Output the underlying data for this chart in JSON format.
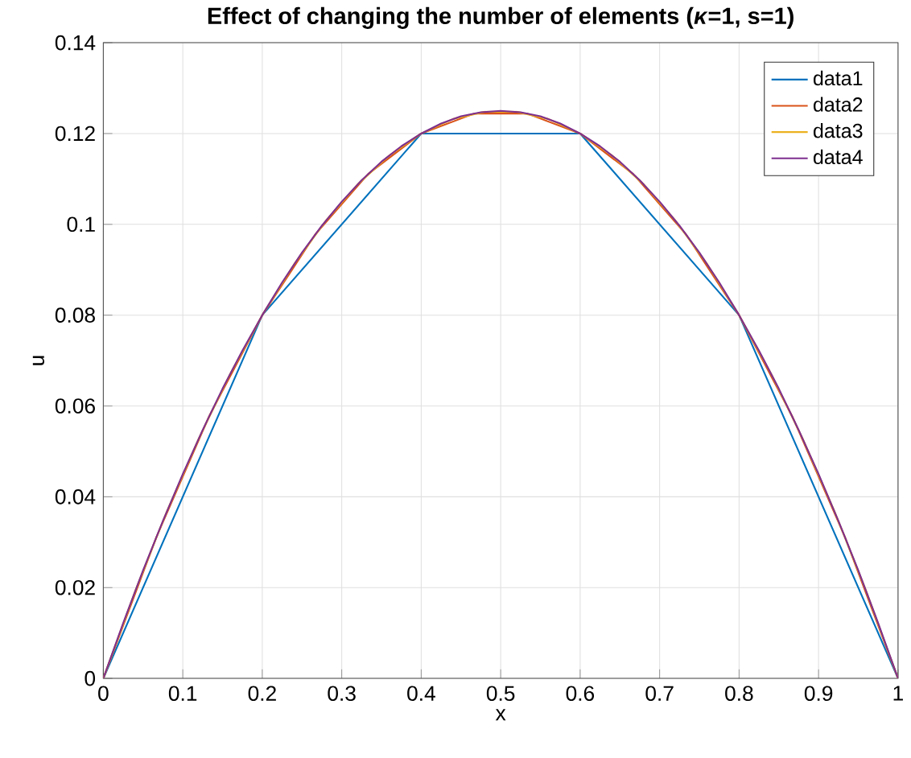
{
  "chart_data": {
    "type": "line",
    "title": "Effect of changing the number of elements (*κ*=1, s=1)",
    "xlabel": "x",
    "ylabel": "u",
    "xlim": [
      0,
      1
    ],
    "ylim": [
      0,
      0.14
    ],
    "xticks": [
      0,
      0.1,
      0.2,
      0.3,
      0.4,
      0.5,
      0.6,
      0.7,
      0.8,
      0.9,
      1
    ],
    "yticks": [
      0,
      0.02,
      0.04,
      0.06,
      0.08,
      0.1,
      0.12,
      0.14
    ],
    "grid": true,
    "legend": "top right",
    "marker": "none",
    "line_style": "solid",
    "series": [
      {
        "name": "data1",
        "color": "#0072bd",
        "x": [
          0,
          0.2,
          0.4,
          0.6,
          0.8,
          1
        ],
        "values": [
          0,
          0.08,
          0.12,
          0.12,
          0.08,
          0
        ]
      },
      {
        "name": "data2",
        "color": "#d95319",
        "x": [
          0,
          0.0667,
          0.1333,
          0.2,
          0.2667,
          0.3333,
          0.4,
          0.4667,
          0.5333,
          0.6,
          0.6667,
          0.7333,
          0.8,
          0.8667,
          0.9333,
          1
        ],
        "values": [
          0,
          0.0311,
          0.0578,
          0.08,
          0.0978,
          0.1111,
          0.12,
          0.1244,
          0.1244,
          0.12,
          0.1111,
          0.0978,
          0.08,
          0.0578,
          0.0311,
          0
        ]
      },
      {
        "name": "data3",
        "color": "#edb120",
        "x": [
          0,
          0.04,
          0.08,
          0.12,
          0.16,
          0.2,
          0.24,
          0.28,
          0.32,
          0.36,
          0.4,
          0.44,
          0.48,
          0.52,
          0.56,
          0.6,
          0.64,
          0.68,
          0.72,
          0.76,
          0.8,
          0.84,
          0.88,
          0.92,
          0.96,
          1
        ],
        "values": [
          0,
          0.0192,
          0.0368,
          0.0528,
          0.0672,
          0.08,
          0.0912,
          0.1008,
          0.1088,
          0.1152,
          0.12,
          0.1232,
          0.1248,
          0.1248,
          0.1232,
          0.12,
          0.1152,
          0.1088,
          0.1008,
          0.0912,
          0.08,
          0.0672,
          0.0528,
          0.0368,
          0.0192,
          0
        ]
      },
      {
        "name": "data4",
        "color": "#7e2f8e",
        "x": [
          0,
          0.025,
          0.05,
          0.075,
          0.1,
          0.125,
          0.15,
          0.175,
          0.2,
          0.225,
          0.25,
          0.275,
          0.3,
          0.325,
          0.35,
          0.375,
          0.4,
          0.425,
          0.45,
          0.475,
          0.5,
          0.525,
          0.55,
          0.575,
          0.6,
          0.625,
          0.65,
          0.675,
          0.7,
          0.725,
          0.75,
          0.775,
          0.8,
          0.825,
          0.85,
          0.875,
          0.9,
          0.925,
          0.95,
          0.975,
          1
        ],
        "values": [
          0,
          0.0122,
          0.0238,
          0.0347,
          0.045,
          0.0547,
          0.0638,
          0.0722,
          0.08,
          0.0872,
          0.0938,
          0.0997,
          0.105,
          0.1097,
          0.1138,
          0.1172,
          0.12,
          0.1222,
          0.1238,
          0.1247,
          0.125,
          0.1247,
          0.1238,
          0.1222,
          0.12,
          0.1172,
          0.1138,
          0.1097,
          0.105,
          0.0997,
          0.0938,
          0.0872,
          0.08,
          0.0722,
          0.0638,
          0.0547,
          0.045,
          0.0347,
          0.0238,
          0.0122,
          0
        ]
      }
    ]
  }
}
